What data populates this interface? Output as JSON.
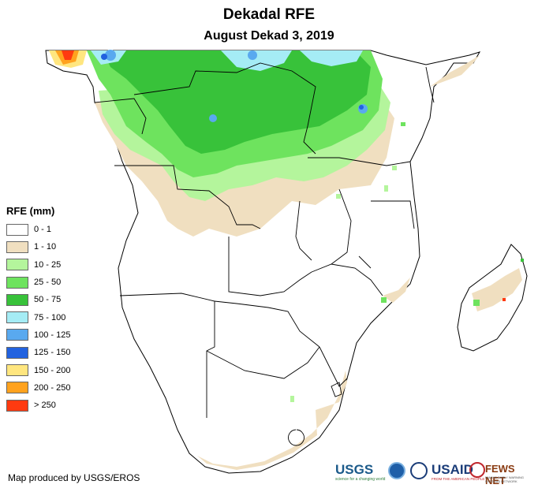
{
  "header": {
    "title": "Dekadal RFE",
    "subtitle": "August Dekad 3, 2019"
  },
  "legend": {
    "title": "RFE (mm)",
    "items": [
      {
        "label": "0 - 1",
        "color": "#ffffff"
      },
      {
        "label": "1 - 10",
        "color": "#f0dfc0"
      },
      {
        "label": "10 - 25",
        "color": "#b4f59c"
      },
      {
        "label": "25 - 50",
        "color": "#6ee35e"
      },
      {
        "label": "50 - 75",
        "color": "#38c23a"
      },
      {
        "label": "75 - 100",
        "color": "#a5ecf5"
      },
      {
        "label": "100 - 125",
        "color": "#59a9ef"
      },
      {
        "label": "125 - 150",
        "color": "#2262df"
      },
      {
        "label": "150 - 200",
        "color": "#ffe67f"
      },
      {
        "label": "200 - 250",
        "color": "#ffa21e"
      },
      {
        "label": "> 250",
        "color": "#ff3a10"
      }
    ]
  },
  "footer": {
    "credit": "Map produced by USGS/EROS"
  },
  "logos": {
    "usgs": "USGS",
    "usgs_tagline": "science for a changing world",
    "usaid": "USAID",
    "usaid_tagline": "FROM THE AMERICAN PEOPLE",
    "fews": "FEWS NET",
    "fews_tagline": "FAMINE EARLY WARNING SYSTEMS NETWORK"
  }
}
